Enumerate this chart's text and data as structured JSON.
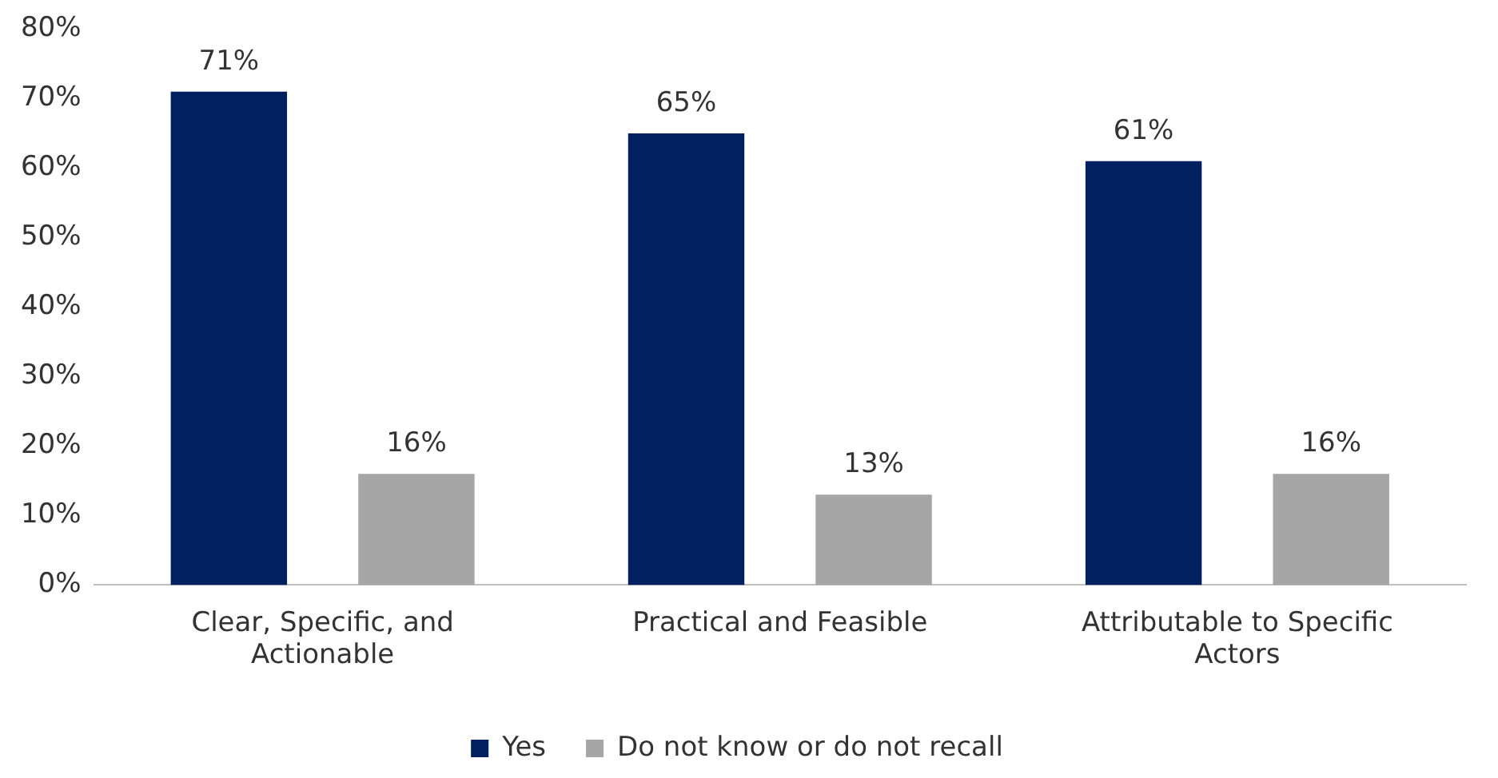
{
  "chart_data": {
    "type": "bar",
    "categories": [
      "Clear, Specific, and Actionable",
      "Practical and Feasible",
      "Attributable to Specific Actors"
    ],
    "series": [
      {
        "name": "Yes",
        "color": "#002060",
        "values": [
          71,
          65,
          61
        ],
        "value_labels": [
          "71%",
          "65%",
          "61%"
        ]
      },
      {
        "name": "Do not know or do not recall",
        "color": "#a6a6a6",
        "values": [
          16,
          13,
          16
        ],
        "value_labels": [
          "16%",
          "13%",
          "16%"
        ]
      }
    ],
    "ylim": [
      0,
      80
    ],
    "yticks": [
      {
        "value": 0,
        "label": "0%"
      },
      {
        "value": 10,
        "label": "10%"
      },
      {
        "value": 20,
        "label": "20%"
      },
      {
        "value": 30,
        "label": "30%"
      },
      {
        "value": 40,
        "label": "40%"
      },
      {
        "value": 50,
        "label": "50%"
      },
      {
        "value": 60,
        "label": "60%"
      },
      {
        "value": 70,
        "label": "70%"
      },
      {
        "value": 80,
        "label": "80%"
      }
    ],
    "grid": false,
    "legend": "bottom"
  }
}
